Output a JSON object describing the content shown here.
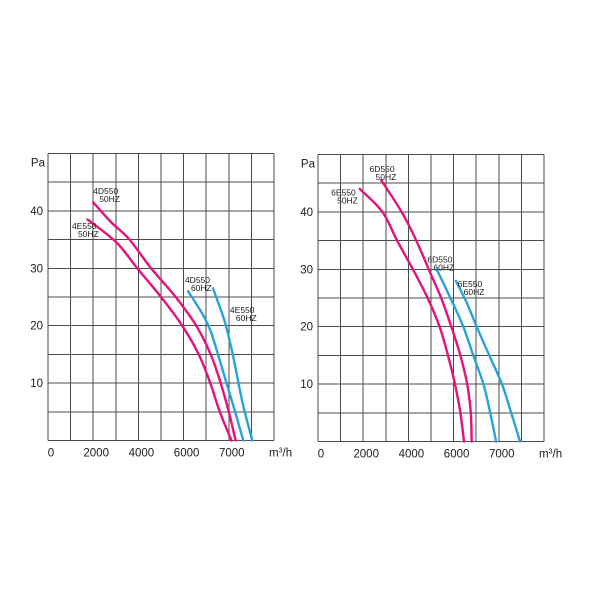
{
  "page": {
    "background": "#ffffff",
    "description_colors": {
      "magenta_curve": "#e5127d",
      "cyan_curve": "#27a3dc",
      "grid": "#4b4b4b",
      "text": "#1c1c1c"
    }
  },
  "chart_data": [
    {
      "type": "line",
      "ylabel": "Pa",
      "xlabel": "m³/h",
      "y_ticks": [
        10,
        20,
        30,
        40
      ],
      "ylim": [
        0,
        50
      ],
      "x_ticks": [
        0,
        2000,
        4000,
        6000,
        7000
      ],
      "x_divisions": 10,
      "y_divisions": 10,
      "x_scale_note": "non-linear: 1000 m³/h per division up to 6000, 500 per division above 6000",
      "grid": true,
      "series": [
        {
          "model": "4D550",
          "freq": "50HZ",
          "color": "#e5127d",
          "label_at": {
            "flow": 2000,
            "pa": 44.4
          },
          "points_flow_pa": [
            [
              2000,
              41.5
            ],
            [
              2800,
              38
            ],
            [
              3610,
              35
            ],
            [
              4560,
              30
            ],
            [
              5650,
              25
            ],
            [
              6280,
              20
            ],
            [
              6600,
              15
            ],
            [
              6820,
              10
            ],
            [
              7000,
              5
            ],
            [
              7150,
              0
            ]
          ]
        },
        {
          "model": "4E550",
          "freq": "50HZ",
          "color": "#e5127d",
          "label_at": {
            "flow": 1060,
            "pa": 38.3
          },
          "points_flow_pa": [
            [
              1750,
              38.5
            ],
            [
              3030,
              34.5
            ],
            [
              3950,
              30
            ],
            [
              5000,
              25
            ],
            [
              5940,
              20
            ],
            [
              6335,
              15
            ],
            [
              6590,
              10
            ],
            [
              6800,
              5
            ],
            [
              7060,
              0
            ]
          ]
        },
        {
          "model": "4D550",
          "freq": "60HZ",
          "color": "#27a3dc",
          "label_at": {
            "flow": 6030,
            "pa": 28.9
          },
          "points_flow_pa": [
            [
              6100,
              26
            ],
            [
              6420,
              22
            ],
            [
              6600,
              19
            ],
            [
              6760,
              15
            ],
            [
              6950,
              10
            ],
            [
              7140,
              5
            ],
            [
              7320,
              0
            ]
          ]
        },
        {
          "model": "4E550",
          "freq": "60HZ",
          "color": "#27a3dc",
          "label_at": {
            "flow": 7025,
            "pa": 23.7
          },
          "points_flow_pa": [
            [
              6650,
              26.5
            ],
            [
              6900,
              21
            ],
            [
              7060,
              16
            ],
            [
              7190,
              11
            ],
            [
              7320,
              6
            ],
            [
              7520,
              0
            ]
          ]
        }
      ]
    },
    {
      "type": "line",
      "ylabel": "Pa",
      "xlabel": "m³/h",
      "y_ticks": [
        10,
        20,
        30,
        40
      ],
      "ylim": [
        0,
        50
      ],
      "x_ticks": [
        0,
        2000,
        4000,
        6000,
        7000
      ],
      "x_divisions": 10,
      "y_divisions": 10,
      "x_scale_note": "non-linear: 1000 m³/h per division up to 6000, 500 per division above 6000",
      "grid": true,
      "series": [
        {
          "model": "6D550",
          "freq": "50HZ",
          "color": "#e5127d",
          "label_at": {
            "flow": 2280,
            "pa": 48.4
          },
          "points_flow_pa": [
            [
              2800,
              45.5
            ],
            [
              3700,
              40
            ],
            [
              4350,
              35
            ],
            [
              4900,
              30
            ],
            [
              5450,
              25
            ],
            [
              5900,
              20
            ],
            [
              6150,
              15
            ],
            [
              6300,
              10
            ],
            [
              6380,
              5
            ],
            [
              6400,
              0
            ]
          ]
        },
        {
          "model": "6E550",
          "freq": "50HZ",
          "color": "#e5127d",
          "label_at": {
            "flow": 580,
            "pa": 44.3
          },
          "points_flow_pa": [
            [
              1850,
              44
            ],
            [
              2850,
              40
            ],
            [
              3500,
              35
            ],
            [
              4200,
              30
            ],
            [
              4850,
              25
            ],
            [
              5380,
              20
            ],
            [
              5750,
              15
            ],
            [
              6030,
              10
            ],
            [
              6150,
              5
            ],
            [
              6230,
              0
            ]
          ]
        },
        {
          "model": "6D550",
          "freq": "60HZ",
          "color": "#27a3dc",
          "label_at": {
            "flow": 4840,
            "pa": 32.7
          },
          "points_flow_pa": [
            [
              5250,
              30
            ],
            [
              5860,
              25
            ],
            [
              6215,
              20
            ],
            [
              6435,
              15
            ],
            [
              6660,
              10
            ],
            [
              6810,
              5
            ],
            [
              6940,
              0
            ]
          ]
        },
        {
          "model": "6E550",
          "freq": "60HZ",
          "color": "#27a3dc",
          "label_at": {
            "flow": 6090,
            "pa": 28.4
          },
          "points_flow_pa": [
            [
              6050,
              28
            ],
            [
              6300,
              24
            ],
            [
              6510,
              20
            ],
            [
              6790,
              15
            ],
            [
              7070,
              10
            ],
            [
              7275,
              5
            ],
            [
              7470,
              0
            ]
          ]
        }
      ]
    }
  ]
}
